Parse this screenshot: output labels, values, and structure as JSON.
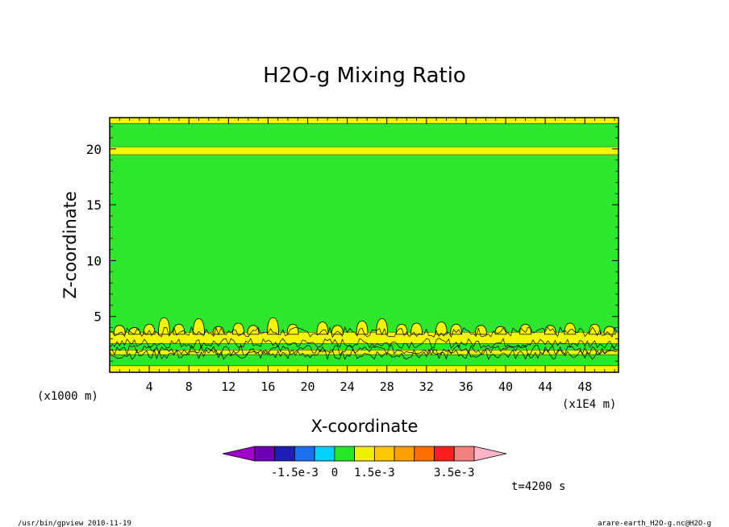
{
  "chart_data": {
    "type": "heatmap",
    "title": "H2O-g Mixing Ratio",
    "xlabel": "X-coordinate",
    "ylabel": "Z-coordinate",
    "x_unit": "(x1E4 m)",
    "y_unit": "(x1000 m)",
    "xlim": [
      0,
      51.4
    ],
    "ylim": [
      0,
      22.8
    ],
    "x_ticks": [
      "4",
      "8",
      "12",
      "16",
      "20",
      "24",
      "28",
      "32",
      "36",
      "40",
      "44",
      "48"
    ],
    "x_tick_values": [
      4,
      8,
      12,
      16,
      20,
      24,
      28,
      32,
      36,
      40,
      44,
      48
    ],
    "y_ticks": [
      "5",
      "10",
      "15",
      "20"
    ],
    "y_tick_values": [
      5,
      10,
      15,
      20
    ],
    "bands": [
      {
        "z_bottom": 0.0,
        "z_top": 0.6,
        "class": "yellow"
      },
      {
        "z_bottom": 0.6,
        "z_top": 1.6,
        "class": "green"
      },
      {
        "z_bottom": 1.6,
        "z_top": 2.0,
        "class": "yellow-noisy"
      },
      {
        "z_bottom": 2.0,
        "z_top": 2.6,
        "class": "green"
      },
      {
        "z_bottom": 2.6,
        "z_top": 3.6,
        "class": "yellow-noisy"
      },
      {
        "z_bottom": 3.6,
        "z_top": 19.5,
        "class": "green"
      },
      {
        "z_bottom": 19.5,
        "z_top": 20.2,
        "class": "yellow"
      },
      {
        "z_bottom": 20.2,
        "z_top": 22.3,
        "class": "green"
      },
      {
        "z_bottom": 22.3,
        "z_top": 22.8,
        "class": "yellow"
      }
    ],
    "bumps": [
      {
        "x": 1.0,
        "z": 4.2
      },
      {
        "x": 2.5,
        "z": 4.0
      },
      {
        "x": 4.0,
        "z": 4.3
      },
      {
        "x": 5.5,
        "z": 4.9
      },
      {
        "x": 7.0,
        "z": 4.3
      },
      {
        "x": 9.0,
        "z": 4.8
      },
      {
        "x": 11.0,
        "z": 4.1
      },
      {
        "x": 13.0,
        "z": 4.4
      },
      {
        "x": 14.5,
        "z": 4.2
      },
      {
        "x": 16.5,
        "z": 4.9
      },
      {
        "x": 18.5,
        "z": 4.3
      },
      {
        "x": 21.5,
        "z": 4.5
      },
      {
        "x": 23.0,
        "z": 4.2
      },
      {
        "x": 25.5,
        "z": 4.6
      },
      {
        "x": 27.5,
        "z": 4.8
      },
      {
        "x": 29.5,
        "z": 4.3
      },
      {
        "x": 31.0,
        "z": 4.4
      },
      {
        "x": 33.5,
        "z": 4.5
      },
      {
        "x": 35.0,
        "z": 4.3
      },
      {
        "x": 37.5,
        "z": 4.2
      },
      {
        "x": 39.5,
        "z": 4.1
      },
      {
        "x": 42.0,
        "z": 4.3
      },
      {
        "x": 44.5,
        "z": 4.2
      },
      {
        "x": 46.5,
        "z": 4.4
      },
      {
        "x": 49.0,
        "z": 4.3
      },
      {
        "x": 50.5,
        "z": 4.1
      }
    ],
    "colorbar": {
      "colors": [
        "#a000c8",
        "#6e00b4",
        "#1e1eb4",
        "#1e6ef0",
        "#00d2ff",
        "#28e628",
        "#f0f000",
        "#ffc800",
        "#ffa000",
        "#ff6e00",
        "#ff1e1e",
        "#f08080",
        "#ffb4c8"
      ],
      "labels": [
        "-1.5e-3",
        "0",
        "1.5e-3",
        "3.5e-3"
      ],
      "label_boundary_index": [
        3,
        5,
        7,
        11
      ]
    },
    "time_label": "t=4200 s"
  },
  "footer": {
    "left": "/usr/bin/gpview  2010-11-19",
    "right": "arare-earth_H2O-g.nc@H2O-g"
  }
}
